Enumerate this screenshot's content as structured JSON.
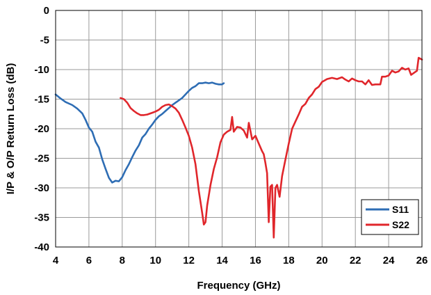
{
  "chart_data": {
    "type": "line",
    "title": "",
    "xlabel": "Frequency (GHz)",
    "ylabel": "I/P & O/P Return Loss (dB)",
    "xlim": [
      4,
      26
    ],
    "ylim": [
      -40,
      0
    ],
    "x_ticks": [
      4,
      6,
      8,
      10,
      12,
      14,
      16,
      18,
      20,
      22,
      24,
      26
    ],
    "y_ticks": [
      0,
      -5,
      -10,
      -15,
      -20,
      -25,
      -30,
      -35,
      -40
    ],
    "grid": true,
    "legend": "bottom-right",
    "series": [
      {
        "name": "S11",
        "color": "#2e6db4",
        "points": [
          [
            4.0,
            -14.2
          ],
          [
            4.3,
            -14.9
          ],
          [
            4.6,
            -15.5
          ],
          [
            5.0,
            -16.0
          ],
          [
            5.3,
            -16.6
          ],
          [
            5.6,
            -17.4
          ],
          [
            5.8,
            -18.5
          ],
          [
            6.0,
            -19.8
          ],
          [
            6.2,
            -20.5
          ],
          [
            6.4,
            -22.2
          ],
          [
            6.6,
            -23.2
          ],
          [
            6.8,
            -25.2
          ],
          [
            7.0,
            -26.8
          ],
          [
            7.2,
            -28.3
          ],
          [
            7.4,
            -29.1
          ],
          [
            7.6,
            -28.8
          ],
          [
            7.8,
            -28.9
          ],
          [
            8.0,
            -28.2
          ],
          [
            8.2,
            -27.0
          ],
          [
            8.4,
            -26.0
          ],
          [
            8.6,
            -24.8
          ],
          [
            8.8,
            -23.7
          ],
          [
            9.0,
            -22.8
          ],
          [
            9.2,
            -21.5
          ],
          [
            9.4,
            -20.9
          ],
          [
            9.6,
            -20.0
          ],
          [
            9.8,
            -19.3
          ],
          [
            10.0,
            -18.5
          ],
          [
            10.2,
            -17.9
          ],
          [
            10.4,
            -17.5
          ],
          [
            10.6,
            -17.0
          ],
          [
            10.8,
            -16.5
          ],
          [
            11.0,
            -16.0
          ],
          [
            11.2,
            -15.6
          ],
          [
            11.4,
            -15.2
          ],
          [
            11.6,
            -14.8
          ],
          [
            11.8,
            -14.2
          ],
          [
            12.0,
            -13.6
          ],
          [
            12.2,
            -13.1
          ],
          [
            12.4,
            -12.8
          ],
          [
            12.6,
            -12.3
          ],
          [
            12.8,
            -12.3
          ],
          [
            13.0,
            -12.2
          ],
          [
            13.2,
            -12.3
          ],
          [
            13.4,
            -12.2
          ],
          [
            13.6,
            -12.4
          ],
          [
            13.8,
            -12.5
          ],
          [
            14.0,
            -12.5
          ],
          [
            14.1,
            -12.3
          ]
        ]
      },
      {
        "name": "S22",
        "color": "#e0262b",
        "points": [
          [
            7.9,
            -14.8
          ],
          [
            8.1,
            -15.0
          ],
          [
            8.3,
            -15.6
          ],
          [
            8.5,
            -16.5
          ],
          [
            8.7,
            -17.0
          ],
          [
            8.9,
            -17.4
          ],
          [
            9.1,
            -17.7
          ],
          [
            9.3,
            -17.7
          ],
          [
            9.5,
            -17.6
          ],
          [
            9.8,
            -17.3
          ],
          [
            10.0,
            -17.1
          ],
          [
            10.2,
            -16.8
          ],
          [
            10.4,
            -16.3
          ],
          [
            10.6,
            -16.0
          ],
          [
            10.8,
            -15.9
          ],
          [
            11.0,
            -16.2
          ],
          [
            11.2,
            -16.6
          ],
          [
            11.4,
            -17.3
          ],
          [
            11.6,
            -18.5
          ],
          [
            11.8,
            -19.8
          ],
          [
            12.0,
            -21.2
          ],
          [
            12.2,
            -23.2
          ],
          [
            12.4,
            -26.0
          ],
          [
            12.6,
            -30.5
          ],
          [
            12.8,
            -34.2
          ],
          [
            12.9,
            -36.2
          ],
          [
            13.0,
            -35.8
          ],
          [
            13.1,
            -33.0
          ],
          [
            13.3,
            -29.5
          ],
          [
            13.5,
            -26.8
          ],
          [
            13.7,
            -24.8
          ],
          [
            13.9,
            -22.3
          ],
          [
            14.1,
            -21.0
          ],
          [
            14.3,
            -20.5
          ],
          [
            14.5,
            -20.2
          ],
          [
            14.6,
            -18.0
          ],
          [
            14.7,
            -20.5
          ],
          [
            14.9,
            -19.7
          ],
          [
            15.1,
            -19.8
          ],
          [
            15.3,
            -20.3
          ],
          [
            15.5,
            -21.5
          ],
          [
            15.6,
            -19.0
          ],
          [
            15.8,
            -21.8
          ],
          [
            16.0,
            -21.2
          ],
          [
            16.2,
            -22.5
          ],
          [
            16.4,
            -23.8
          ],
          [
            16.5,
            -24.3
          ],
          [
            16.6,
            -25.8
          ],
          [
            16.7,
            -27.5
          ],
          [
            16.8,
            -35.8
          ],
          [
            16.9,
            -29.8
          ],
          [
            17.0,
            -29.5
          ],
          [
            17.1,
            -38.4
          ],
          [
            17.2,
            -30.0
          ],
          [
            17.3,
            -29.5
          ],
          [
            17.45,
            -31.5
          ],
          [
            17.6,
            -28.0
          ],
          [
            17.8,
            -25.2
          ],
          [
            18.0,
            -22.5
          ],
          [
            18.2,
            -20.0
          ],
          [
            18.4,
            -18.8
          ],
          [
            18.6,
            -17.6
          ],
          [
            18.8,
            -16.3
          ],
          [
            19.0,
            -15.8
          ],
          [
            19.2,
            -14.8
          ],
          [
            19.4,
            -14.2
          ],
          [
            19.6,
            -13.3
          ],
          [
            19.8,
            -12.9
          ],
          [
            20.0,
            -12.1
          ],
          [
            20.3,
            -11.6
          ],
          [
            20.6,
            -11.4
          ],
          [
            20.9,
            -11.6
          ],
          [
            21.2,
            -11.3
          ],
          [
            21.4,
            -11.7
          ],
          [
            21.6,
            -12.0
          ],
          [
            21.8,
            -11.5
          ],
          [
            22.0,
            -11.8
          ],
          [
            22.2,
            -12.0
          ],
          [
            22.4,
            -12.0
          ],
          [
            22.6,
            -12.5
          ],
          [
            22.8,
            -11.8
          ],
          [
            23.0,
            -12.6
          ],
          [
            23.2,
            -12.5
          ],
          [
            23.5,
            -12.5
          ],
          [
            23.6,
            -11.2
          ],
          [
            23.8,
            -11.2
          ],
          [
            24.0,
            -11.0
          ],
          [
            24.2,
            -10.2
          ],
          [
            24.4,
            -10.5
          ],
          [
            24.6,
            -10.3
          ],
          [
            24.8,
            -9.7
          ],
          [
            25.0,
            -10.0
          ],
          [
            25.2,
            -9.8
          ],
          [
            25.35,
            -10.9
          ],
          [
            25.5,
            -10.6
          ],
          [
            25.7,
            -10.2
          ],
          [
            25.8,
            -8.0
          ],
          [
            26.0,
            -8.3
          ]
        ]
      }
    ]
  }
}
